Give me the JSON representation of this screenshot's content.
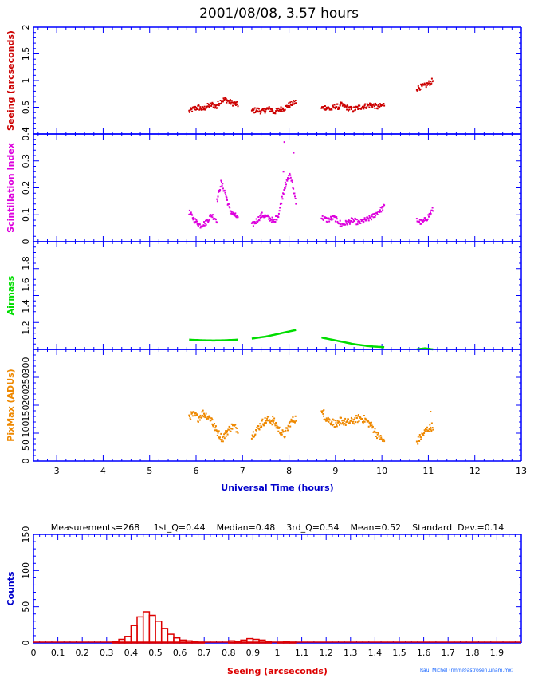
{
  "title": "2001/08/08, 3.57 hours",
  "colors": {
    "axis": "#0000ff",
    "seeing": "#cc0000",
    "scint": "#dd00dd",
    "airmass": "#00dd00",
    "pixmax": "#ee8800",
    "hist": "#dd0000",
    "xlabel": "#0000cc",
    "credit": "#1060ff"
  },
  "chart_data": [
    {
      "type": "scatter",
      "ylabel": "Seeing (arcseconds)",
      "xlim": [
        2.5,
        13
      ],
      "ylim": [
        0,
        2
      ],
      "yticks": [
        "0.5",
        "1",
        "1.5",
        "2"
      ],
      "segments": [
        {
          "x_start": 5.85,
          "x_end": 6.45,
          "y": [
            0.42,
            0.47,
            0.5,
            0.46,
            0.52,
            0.55,
            0.5
          ]
        },
        {
          "x_start": 6.45,
          "x_end": 6.9,
          "y": [
            0.55,
            0.62,
            0.65,
            0.6,
            0.57,
            0.55
          ]
        },
        {
          "x_start": 7.2,
          "x_end": 7.65,
          "y": [
            0.43,
            0.45,
            0.42,
            0.47,
            0.45
          ]
        },
        {
          "x_start": 7.65,
          "x_end": 8.15,
          "y": [
            0.4,
            0.45,
            0.48,
            0.55,
            0.6
          ]
        },
        {
          "x_start": 8.7,
          "x_end": 9.1,
          "y": [
            0.48,
            0.5,
            0.46,
            0.52,
            0.5
          ]
        },
        {
          "x_start": 9.1,
          "x_end": 10.05,
          "y": [
            0.55,
            0.5,
            0.45,
            0.5,
            0.52,
            0.55,
            0.5,
            0.55
          ]
        },
        {
          "x_start": 10.75,
          "x_end": 11.1,
          "y": [
            0.85,
            0.88,
            0.9,
            0.95,
            1.0
          ]
        }
      ]
    },
    {
      "type": "scatter",
      "ylabel": "Scintillation Index",
      "xlim": [
        2.5,
        13
      ],
      "ylim": [
        0,
        0.4
      ],
      "yticks": [
        "0",
        "0.1",
        "0.2",
        "0.3",
        "0.4"
      ],
      "segments": [
        {
          "x_start": 5.85,
          "x_end": 6.45,
          "y": [
            0.11,
            0.08,
            0.06,
            0.07,
            0.1,
            0.08
          ]
        },
        {
          "x_start": 6.45,
          "x_end": 6.9,
          "y": [
            0.15,
            0.22,
            0.18,
            0.12,
            0.1,
            0.09
          ]
        },
        {
          "x_start": 7.2,
          "x_end": 7.65,
          "y": [
            0.06,
            0.08,
            0.1,
            0.09,
            0.08
          ]
        },
        {
          "x_start": 7.65,
          "x_end": 8.15,
          "y": [
            0.07,
            0.1,
            0.2,
            0.25,
            0.15
          ]
        },
        {
          "x_start": 8.7,
          "x_end": 9.1,
          "y": [
            0.09,
            0.08,
            0.09,
            0.07
          ]
        },
        {
          "x_start": 9.1,
          "x_end": 10.05,
          "y": [
            0.06,
            0.07,
            0.08,
            0.07,
            0.08,
            0.09,
            0.11,
            0.13
          ]
        },
        {
          "x_start": 10.75,
          "x_end": 11.1,
          "y": [
            0.08,
            0.07,
            0.09,
            0.12
          ]
        }
      ],
      "points": [
        [
          7.9,
          0.37
        ],
        [
          8.1,
          0.33
        ],
        [
          7.88,
          0.26
        ],
        [
          7.92,
          0.22
        ]
      ]
    },
    {
      "type": "line",
      "ylabel": "Airmass",
      "xlim": [
        2.5,
        13
      ],
      "ylim": [
        1,
        2
      ],
      "yticks": [
        "1.2",
        "1.4",
        "1.6",
        "1.8"
      ],
      "segments": [
        {
          "x_start": 5.85,
          "x_end": 6.9,
          "y": [
            1.09,
            1.085,
            1.082,
            1.085,
            1.09
          ]
        },
        {
          "x_start": 7.2,
          "x_end": 8.15,
          "y": [
            1.1,
            1.12,
            1.15,
            1.18
          ]
        },
        {
          "x_start": 8.7,
          "x_end": 10.05,
          "y": [
            1.11,
            1.08,
            1.05,
            1.03,
            1.02
          ]
        },
        {
          "x_start": 10.75,
          "x_end": 11.1,
          "y": [
            1.0,
            1.01,
            1.0
          ]
        }
      ]
    },
    {
      "type": "scatter",
      "ylabel": "PixMax (ADUs)",
      "xlabel": "Universal Time (hours)",
      "xlim": [
        2.5,
        13
      ],
      "xticks": [
        "3",
        "4",
        "5",
        "6",
        "7",
        "8",
        "9",
        "10",
        "11",
        "12",
        "13"
      ],
      "ylim": [
        0,
        350
      ],
      "yticks": [
        "0",
        "50",
        "100",
        "150",
        "200",
        "250",
        "300"
      ],
      "segments": [
        {
          "x_start": 5.85,
          "x_end": 6.35,
          "y": [
            140,
            145,
            135,
            150,
            140,
            130
          ]
        },
        {
          "x_start": 6.35,
          "x_end": 6.9,
          "y": [
            120,
            90,
            70,
            95,
            110,
            100
          ]
        },
        {
          "x_start": 7.2,
          "x_end": 7.65,
          "y": [
            80,
            100,
            120,
            130,
            125
          ]
        },
        {
          "x_start": 7.65,
          "x_end": 8.15,
          "y": [
            130,
            100,
            80,
            120,
            135
          ]
        },
        {
          "x_start": 8.7,
          "x_end": 9.1,
          "y": [
            150,
            130,
            120,
            110
          ]
        },
        {
          "x_start": 9.1,
          "x_end": 10.05,
          "y": [
            130,
            120,
            125,
            135,
            130,
            110,
            80,
            60
          ]
        },
        {
          "x_start": 10.75,
          "x_end": 11.1,
          "y": [
            60,
            80,
            100,
            110
          ]
        }
      ],
      "points": [
        [
          8.75,
          160
        ],
        [
          11.05,
          155
        ]
      ]
    },
    {
      "type": "bar",
      "stats": "Measurements=268     1st_Q=0.44    Median=0.48    3rd_Q=0.54    Mean=0.52    Standard  Dev.=0.14",
      "ylabel": "Counts",
      "xlabel": "Seeing (arcseconds)",
      "xlim": [
        0,
        2
      ],
      "xticks": [
        "0",
        "0.1",
        "0.2",
        "0.3",
        "0.4",
        "0.5",
        "0.6",
        "0.7",
        "0.8",
        "0.9",
        "1",
        "1.1",
        "1.2",
        "1.3",
        "1.4",
        "1.5",
        "1.6",
        "1.7",
        "1.8",
        "1.9"
      ],
      "ylim": [
        0,
        150
      ],
      "yticks": [
        "0",
        "50",
        "100",
        "150"
      ],
      "bin_width": 0.025,
      "bins": [
        [
          0.325,
          2
        ],
        [
          0.35,
          5
        ],
        [
          0.375,
          9
        ],
        [
          0.4,
          24
        ],
        [
          0.425,
          36
        ],
        [
          0.45,
          43
        ],
        [
          0.475,
          38
        ],
        [
          0.5,
          30
        ],
        [
          0.525,
          20
        ],
        [
          0.55,
          12
        ],
        [
          0.575,
          7
        ],
        [
          0.6,
          4
        ],
        [
          0.625,
          3
        ],
        [
          0.65,
          2
        ],
        [
          0.675,
          1
        ],
        [
          0.8,
          3
        ],
        [
          0.825,
          2
        ],
        [
          0.85,
          4
        ],
        [
          0.875,
          6
        ],
        [
          0.9,
          5
        ],
        [
          0.925,
          4
        ],
        [
          0.95,
          2
        ],
        [
          1.0,
          1
        ],
        [
          1.025,
          2
        ],
        [
          1.05,
          1
        ]
      ]
    }
  ],
  "credit": "Raul Michel (rmm@astrosen.unam.mx)"
}
